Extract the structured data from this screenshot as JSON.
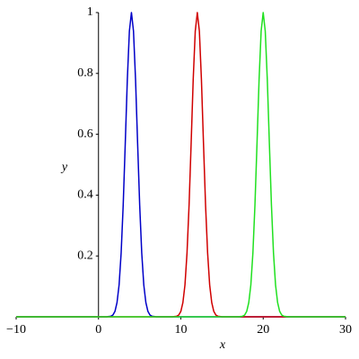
{
  "chart_data": {
    "type": "line",
    "x_label": "x",
    "y_label": "y",
    "x": [
      -10,
      1,
      1.25,
      1.5,
      1.75,
      2,
      2.25,
      2.5,
      2.75,
      3,
      3.25,
      3.5,
      3.75,
      4,
      4.25,
      4.5,
      4.75,
      5,
      5.25,
      5.5,
      5.75,
      6,
      6.25,
      6.5,
      6.75,
      7,
      7.25,
      7.5,
      7.75,
      8,
      8.25,
      8.5,
      8.75,
      9,
      9.25,
      9.5,
      9.75,
      10,
      10.25,
      10.5,
      10.75,
      11,
      11.25,
      11.5,
      11.75,
      12,
      12.25,
      12.5,
      12.75,
      13,
      13.25,
      13.5,
      13.75,
      14,
      14.25,
      14.5,
      14.75,
      15,
      15.25,
      15.5,
      15.75,
      16,
      16.25,
      16.5,
      16.75,
      17,
      17.25,
      17.5,
      17.75,
      18,
      18.25,
      18.5,
      18.75,
      19,
      19.25,
      19.5,
      19.75,
      20,
      20.25,
      20.5,
      20.75,
      21,
      21.25,
      21.5,
      21.75,
      22,
      22.25,
      22.5,
      22.75,
      23,
      30
    ],
    "series": [
      {
        "color": "#0000c8",
        "values": [
          0,
          0,
          0.001,
          0.002,
          0.006,
          0.018,
          0.047,
          0.105,
          0.21,
          0.368,
          0.57,
          0.779,
          0.939,
          1,
          0.939,
          0.779,
          0.57,
          0.368,
          0.21,
          0.105,
          0.047,
          0.018,
          0.006,
          0.002,
          0.001,
          0,
          0,
          0,
          0,
          0,
          0,
          0,
          0,
          0,
          0,
          0,
          0,
          0,
          0,
          0,
          0,
          0,
          0,
          0,
          0,
          0,
          0,
          0,
          0,
          0,
          0,
          0,
          0,
          0,
          0,
          0,
          0,
          0,
          0,
          0,
          0,
          0,
          0,
          0,
          0,
          0,
          0,
          0,
          0,
          0,
          0,
          0,
          0,
          0,
          0,
          0,
          0,
          0,
          0,
          0,
          0,
          0,
          0,
          0,
          0,
          0,
          0,
          0,
          0,
          0,
          0
        ]
      },
      {
        "color": "#d00000",
        "values": [
          0,
          0,
          0,
          0,
          0,
          0,
          0,
          0,
          0,
          0,
          0,
          0,
          0,
          0,
          0,
          0,
          0,
          0,
          0,
          0,
          0,
          0,
          0,
          0,
          0,
          0,
          0,
          0,
          0,
          0,
          0,
          0,
          0,
          0,
          0.001,
          0.002,
          0.006,
          0.018,
          0.047,
          0.105,
          0.21,
          0.368,
          0.57,
          0.779,
          0.939,
          1,
          0.939,
          0.779,
          0.57,
          0.368,
          0.21,
          0.105,
          0.047,
          0.018,
          0.006,
          0.002,
          0.001,
          0,
          0,
          0,
          0,
          0,
          0,
          0,
          0,
          0,
          0,
          0,
          0,
          0,
          0,
          0,
          0,
          0,
          0,
          0,
          0,
          0,
          0,
          0,
          0,
          0,
          0,
          0,
          0,
          0,
          0,
          0,
          0,
          0,
          0
        ]
      },
      {
        "color": "#20e020",
        "values": [
          0,
          0,
          0,
          0,
          0,
          0,
          0,
          0,
          0,
          0,
          0,
          0,
          0,
          0,
          0,
          0,
          0,
          0,
          0,
          0,
          0,
          0,
          0,
          0,
          0,
          0,
          0,
          0,
          0,
          0,
          0,
          0,
          0,
          0,
          0,
          0,
          0,
          0,
          0,
          0,
          0,
          0,
          0,
          0,
          0,
          0,
          0,
          0,
          0,
          0,
          0,
          0,
          0,
          0,
          0,
          0,
          0,
          0,
          0,
          0,
          0,
          0,
          0,
          0,
          0,
          0,
          0.001,
          0.002,
          0.006,
          0.018,
          0.047,
          0.105,
          0.21,
          0.368,
          0.57,
          0.779,
          0.939,
          1,
          0.939,
          0.779,
          0.57,
          0.368,
          0.21,
          0.105,
          0.047,
          0.018,
          0.006,
          0.002,
          0.001,
          0,
          0
        ]
      }
    ],
    "xlim": [
      -10,
      30
    ],
    "xticks": [
      {
        "value": -10,
        "label": "−10"
      },
      0,
      10,
      20,
      30
    ],
    "ylim": [
      0,
      1
    ],
    "yticks": [
      0.2,
      0.4,
      0.6,
      0.8,
      1
    ]
  }
}
